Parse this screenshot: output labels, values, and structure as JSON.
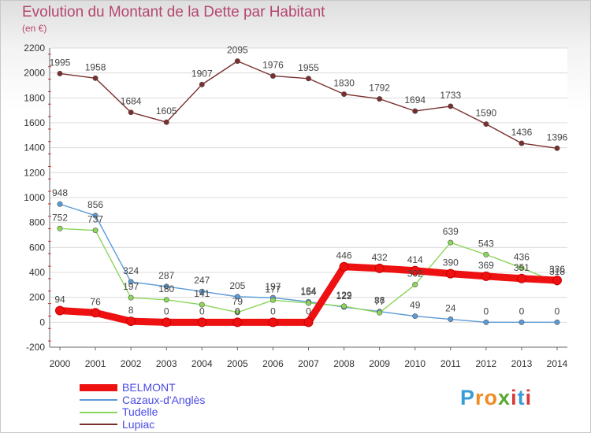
{
  "header": {
    "title": "Evolution du Montant de la Dette par Habitant",
    "subtitle": "(en €)"
  },
  "logo": {
    "letters": [
      "P",
      "r",
      "o",
      "x",
      "i",
      "t",
      "i"
    ],
    "colors": [
      "#3a9bd9",
      "#f08a24",
      "#f08a24",
      "#5aa830",
      "#d83a3a",
      "#3a9bd9",
      "#d83a3a"
    ]
  },
  "chart_data": {
    "type": "line",
    "x": [
      "2000",
      "2001",
      "2002",
      "2003",
      "2004",
      "2005",
      "2006",
      "2007",
      "2008",
      "2009",
      "2010",
      "2011",
      "2012",
      "2013",
      "2014"
    ],
    "ylim": [
      -200,
      2200
    ],
    "y_ticks": [
      -200,
      0,
      200,
      400,
      600,
      800,
      1000,
      1200,
      1400,
      1600,
      1800,
      2000,
      2200
    ],
    "grid": true,
    "legend_position": "bottom-left",
    "series": [
      {
        "name": "Lupiac",
        "color": "#7a2e2e",
        "values": [
          1995,
          1958,
          1684,
          1605,
          1907,
          2095,
          1976,
          1955,
          1830,
          1792,
          1694,
          1733,
          1590,
          1436,
          1396
        ]
      },
      {
        "name": "Cazaux-d'Anglès",
        "color": "#5b9bd5",
        "values": [
          948,
          856,
          324,
          287,
          247,
          205,
          197,
          164,
          122,
          86,
          49,
          24,
          0,
          0,
          0
        ]
      },
      {
        "name": "Tudelle",
        "color": "#8cd65a",
        "values": [
          752,
          737,
          197,
          180,
          141,
          79,
          177,
          154,
          129,
          77,
          302,
          639,
          543,
          436,
          318
        ]
      },
      {
        "name": "BELMONT",
        "color": "#ee1111",
        "values": [
          94,
          76,
          8,
          0,
          0,
          0,
          0,
          0,
          446,
          432,
          414,
          390,
          369,
          351,
          336
        ]
      }
    ],
    "legend_order": [
      "BELMONT",
      "Cazaux-d'Anglès",
      "Tudelle",
      "Lupiac"
    ]
  }
}
